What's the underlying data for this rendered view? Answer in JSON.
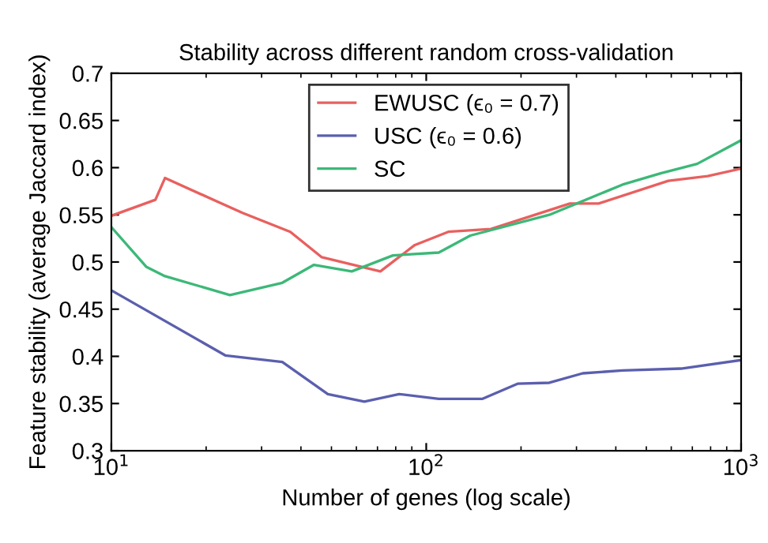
{
  "chart_data": {
    "type": "line",
    "title": "Stability across different random cross-validation",
    "xlabel": "Number of genes (log scale)",
    "ylabel": "Feature stability (average Jaccard index)",
    "log": "x",
    "xlim": [
      10,
      1000
    ],
    "ylim": [
      0.3,
      0.7
    ],
    "xticks": [
      {
        "value": 10,
        "label": "10$^{1}$"
      },
      {
        "value": 100,
        "label": "10$^{2}$"
      },
      {
        "value": 1000,
        "label": "10$^{3}$"
      }
    ],
    "yticks": [
      0.3,
      0.35,
      0.4,
      0.45,
      0.5,
      0.55,
      0.6,
      0.65,
      0.7
    ],
    "grid": false,
    "legend": "top",
    "marker": "none",
    "line_style": "solid",
    "series": [
      {
        "name": "EWUSC (ϵ₀ = 0.7)",
        "color": "#e8605f",
        "x": [
          10,
          13.8,
          14.8,
          26.1,
          37,
          46.6,
          71.5,
          92,
          117.5,
          160.6,
          286,
          353,
          587,
          783,
          1000
        ],
        "values": [
          0.549,
          0.566,
          0.589,
          0.552,
          0.532,
          0.505,
          0.49,
          0.518,
          0.532,
          0.535,
          0.562,
          0.562,
          0.586,
          0.591,
          0.599
        ]
      },
      {
        "name": "USC (ϵ₀ = 0.6)",
        "color": "#5b5fae",
        "x": [
          10,
          23,
          34.9,
          48.7,
          63.6,
          82,
          109.6,
          151,
          195,
          246,
          314,
          420,
          644,
          1000
        ],
        "values": [
          0.47,
          0.401,
          0.394,
          0.36,
          0.352,
          0.36,
          0.355,
          0.355,
          0.371,
          0.372,
          0.382,
          0.385,
          0.387,
          0.396
        ]
      },
      {
        "name": "SC",
        "color": "#3cb878",
        "x": [
          10,
          12.9,
          14.8,
          23.8,
          34.9,
          44,
          58,
          78.4,
          109.6,
          138,
          246,
          420,
          555,
          725,
          1000
        ],
        "values": [
          0.537,
          0.495,
          0.485,
          0.465,
          0.478,
          0.497,
          0.49,
          0.507,
          0.51,
          0.528,
          0.55,
          0.582,
          0.594,
          0.604,
          0.629
        ]
      }
    ]
  }
}
